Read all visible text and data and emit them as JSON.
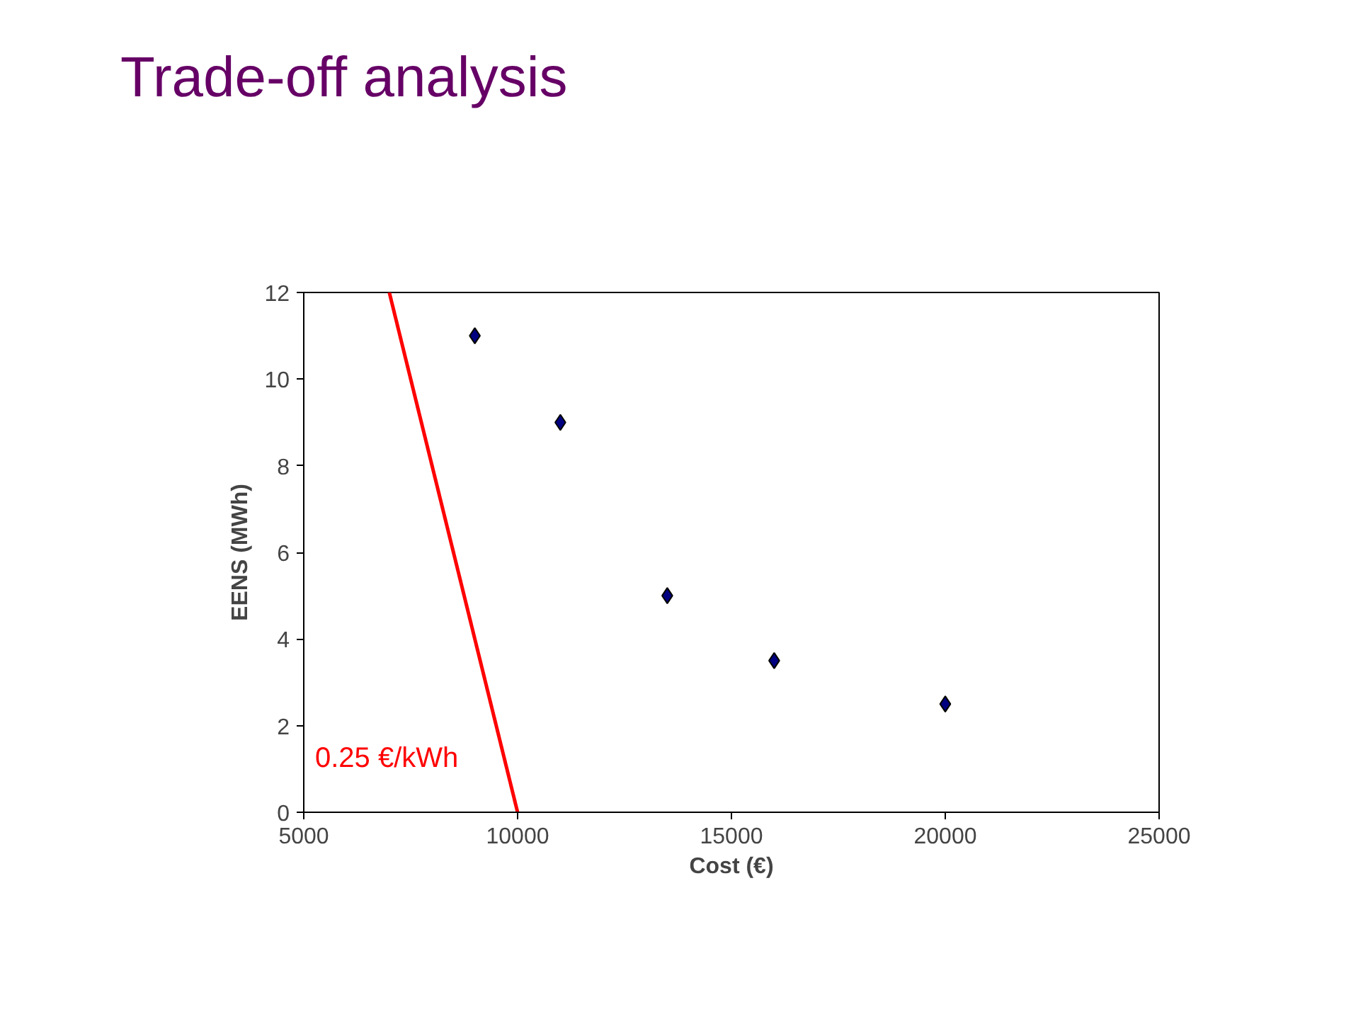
{
  "chart_data": {
    "type": "scatter",
    "title": "Trade-off analysis",
    "xlabel": "Cost (€)",
    "ylabel": "EENS (MWh)",
    "xlim": [
      5000,
      25000
    ],
    "xticks": [
      5000,
      10000,
      15000,
      20000,
      25000
    ],
    "ylim": [
      0,
      12
    ],
    "yticks": [
      0,
      2,
      4,
      6,
      8,
      10,
      12
    ],
    "grid": false,
    "series": [
      {
        "marker": "diamond",
        "color": "#000080",
        "x": [
          9000,
          11000,
          13500,
          16000,
          20000
        ],
        "values": [
          11,
          9,
          5,
          3.5,
          2.5
        ]
      },
      {
        "type": "line",
        "color": "#ff0000",
        "x": [
          7000,
          10000
        ],
        "values": [
          12,
          0
        ]
      }
    ],
    "annotations": [
      "0.25 €/kWh"
    ]
  }
}
